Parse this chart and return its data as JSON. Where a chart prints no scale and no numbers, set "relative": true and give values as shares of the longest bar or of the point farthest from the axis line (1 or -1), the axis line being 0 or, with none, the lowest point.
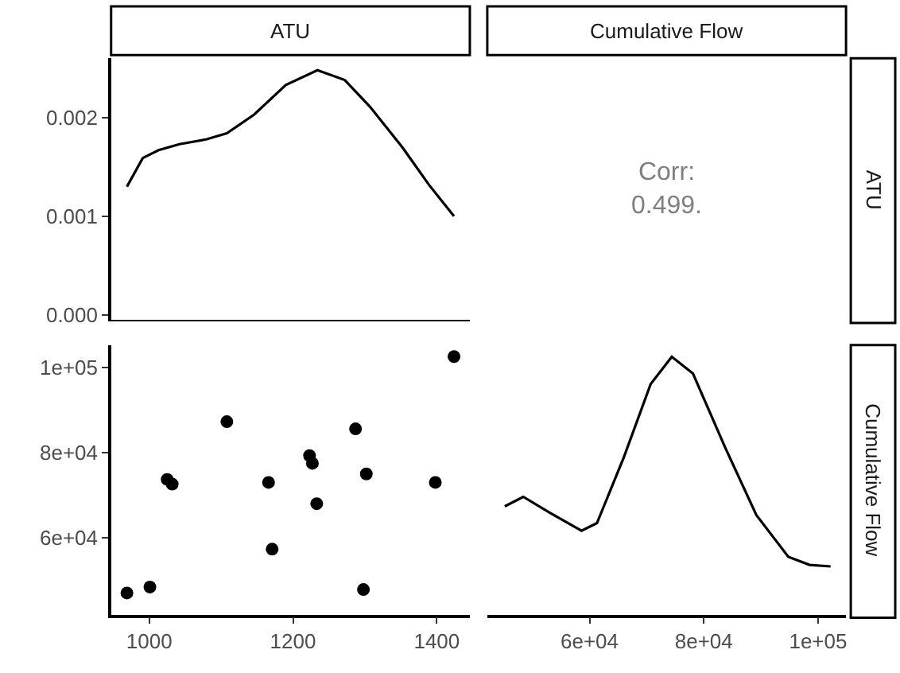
{
  "chart_data": [
    {
      "type": "line",
      "title": "ATU",
      "x": [
        969,
        991,
        1013,
        1042,
        1080,
        1108,
        1146,
        1190,
        1234,
        1272,
        1307,
        1352,
        1389,
        1424
      ],
      "series": [
        {
          "color": "#000000",
          "values": [
            0.0013,
            0.00159,
            0.00167,
            0.00173,
            0.00178,
            0.00184,
            0.00203,
            0.00233,
            0.00248,
            0.00238,
            0.00211,
            0.0017,
            0.00132,
            0.001
          ]
        }
      ],
      "xlim": [
        947,
        1446
      ],
      "xticks": [
        {
          "value": 1000,
          "label": null
        },
        {
          "value": 1200,
          "label": null
        },
        {
          "value": 1400,
          "label": null
        }
      ],
      "ylim": [
        -5e-05,
        0.0026
      ],
      "yticks": [
        {
          "value": 0,
          "label": "0.000"
        },
        0.001,
        0.002
      ],
      "tick_labels": "y",
      "marker": "none",
      "line_style": "solid"
    },
    {
      "type": "other",
      "title": "Cumulative Flow",
      "y2label": "ATU",
      "annotations": [
        "Corr:",
        "0.499."
      ]
    },
    {
      "type": "scatter",
      "x": [
        1424,
        1108,
        1287,
        1223,
        1227,
        1302,
        1398,
        1025,
        1032,
        1166,
        1233,
        1171,
        1001,
        969,
        1298
      ],
      "series": [
        {
          "color": "#000000",
          "values": [
            102600,
            87300,
            85600,
            79300,
            77500,
            75000,
            73000,
            73700,
            72600,
            73000,
            68000,
            57300,
            48400,
            47000,
            47800
          ]
        }
      ],
      "xlim": [
        947,
        1446
      ],
      "xticks": [
        1000,
        1200,
        1400
      ],
      "ylim": [
        41900,
        105300
      ],
      "yticks": [
        {
          "value": 60000,
          "label": "6e+04"
        },
        {
          "value": 80000,
          "label": "8e+04"
        },
        {
          "value": 100000,
          "label": "1e+05"
        }
      ],
      "marker": "circle"
    },
    {
      "type": "line",
      "y2label": "Cumulative Flow",
      "relative": true,
      "x": [
        45160,
        48400,
        53000,
        58600,
        61300,
        66000,
        70700,
        74400,
        78100,
        83700,
        89200,
        94800,
        98500,
        102200
      ],
      "series": [
        {
          "color": "#000000",
          "values": [
            0.42,
            0.457,
            0.396,
            0.325,
            0.355,
            0.61,
            0.894,
            1.0,
            0.935,
            0.65,
            0.386,
            0.224,
            0.193,
            0.187
          ]
        }
      ],
      "xlim": [
        42100,
        104900
      ],
      "xticks": [
        {
          "value": 60000,
          "label": "6e+04"
        },
        {
          "value": 80000,
          "label": "8e+04"
        },
        {
          "value": 100000,
          "label": "1e+05"
        }
      ],
      "tick_labels": "x",
      "marker": "none",
      "line_style": "solid"
    }
  ]
}
